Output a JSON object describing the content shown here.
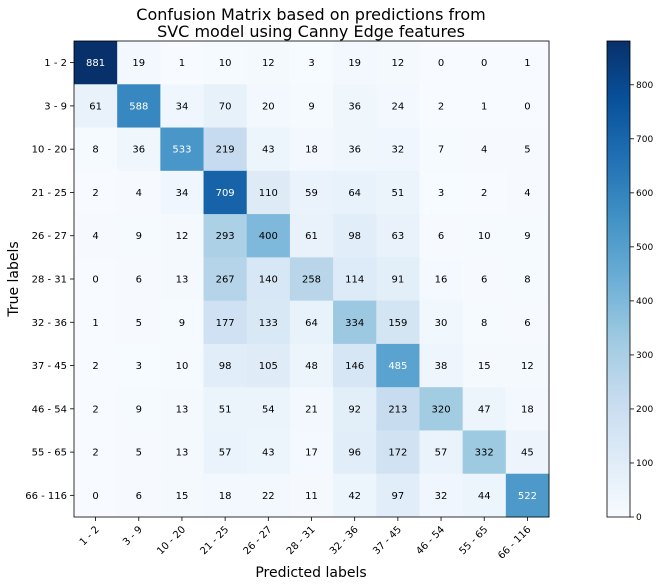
{
  "chart_data": {
    "type": "heatmap",
    "title_lines": [
      "Confusion Matrix based on predictions from",
      "SVC model using Canny Edge features"
    ],
    "xlabel": "Predicted labels",
    "ylabel": "True labels",
    "x_categories": [
      "1 - 2",
      "3 - 9",
      "10 - 20",
      "21 - 25",
      "26 - 27",
      "28 - 31",
      "32 - 36",
      "37 - 45",
      "46 - 54",
      "55 - 65",
      "66 - 116"
    ],
    "y_categories": [
      "1 - 2",
      "3 - 9",
      "10 - 20",
      "21 - 25",
      "26 - 27",
      "28 - 31",
      "32 - 36",
      "37 - 45",
      "46 - 54",
      "55 - 65",
      "66 - 116"
    ],
    "matrix": [
      [
        881,
        19,
        1,
        10,
        12,
        3,
        19,
        12,
        0,
        0,
        1
      ],
      [
        61,
        588,
        34,
        70,
        20,
        9,
        36,
        24,
        2,
        1,
        0
      ],
      [
        8,
        36,
        533,
        219,
        43,
        18,
        36,
        32,
        7,
        4,
        5
      ],
      [
        2,
        4,
        34,
        709,
        110,
        59,
        64,
        51,
        3,
        2,
        4
      ],
      [
        4,
        9,
        12,
        293,
        400,
        61,
        98,
        63,
        6,
        10,
        9
      ],
      [
        0,
        6,
        13,
        267,
        140,
        258,
        114,
        91,
        16,
        6,
        8
      ],
      [
        1,
        5,
        9,
        177,
        133,
        64,
        334,
        159,
        30,
        8,
        6
      ],
      [
        2,
        3,
        10,
        98,
        105,
        48,
        146,
        485,
        38,
        15,
        12
      ],
      [
        2,
        9,
        13,
        51,
        54,
        21,
        92,
        213,
        320,
        47,
        18
      ],
      [
        2,
        5,
        13,
        57,
        43,
        17,
        96,
        172,
        57,
        332,
        45
      ],
      [
        0,
        6,
        15,
        18,
        22,
        11,
        42,
        97,
        32,
        44,
        522
      ]
    ],
    "colormap": "Blues",
    "color_range": [
      0,
      881
    ],
    "colorbar_ticks": [
      0,
      100,
      200,
      300,
      400,
      500,
      600,
      700,
      800
    ],
    "grid": false
  }
}
